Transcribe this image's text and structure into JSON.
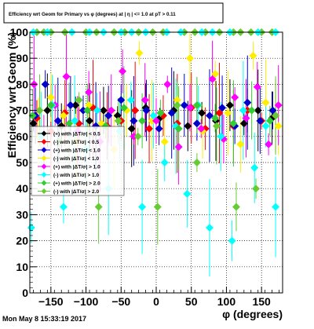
{
  "chart_data": {
    "type": "scatter",
    "title": "Efficiency wrt Geom for Primary vs φ (degrees) at | η | <= 1.0 at pT > 0.11",
    "xlabel": "φ (degrees)",
    "ylabel": "Efficiency wrt Geom (%)",
    "xlim": [
      -180,
      180
    ],
    "ylim": [
      0,
      100
    ],
    "xticks": [
      -150,
      -100,
      -50,
      0,
      50,
      100,
      150
    ],
    "yticks": [
      0,
      10,
      20,
      30,
      40,
      50,
      60,
      70,
      80,
      90,
      100
    ],
    "grid": true,
    "legend_position": "left-center",
    "series": [
      {
        "name": "(+) with |ΔT/σ| < 0.5",
        "color": "#000000",
        "x": [
          -175,
          -155,
          -135,
          -115,
          -95,
          -75,
          -55,
          -35,
          -15,
          5,
          25,
          45,
          65,
          85,
          105,
          125,
          145,
          165
        ],
        "y": [
          65,
          70,
          64,
          72,
          66,
          70,
          68,
          63,
          71,
          67,
          70,
          64,
          69,
          66,
          72,
          65,
          70,
          67
        ]
      },
      {
        "name": "(-) with |ΔT/σ| < 0.5",
        "color": "#ff0000",
        "x": [
          -170,
          -150,
          -130,
          -110,
          -90,
          -70,
          -50,
          -30,
          -10,
          10,
          30,
          50,
          70,
          90,
          110,
          130,
          150,
          170
        ],
        "y": [
          67,
          62,
          69,
          65,
          71,
          64,
          66,
          70,
          63,
          68,
          65,
          71,
          63,
          69,
          64,
          70,
          66,
          68
        ]
      },
      {
        "name": "(+) with |ΔT/σ| < 1.0",
        "color": "#0000cc",
        "x": [
          -172,
          -158,
          -140,
          -122,
          -104,
          -86,
          -68,
          -50,
          -32,
          -14,
          4,
          22,
          40,
          58,
          76,
          94,
          112,
          130,
          148,
          166
        ],
        "y": [
          68,
          80,
          66,
          72,
          70,
          64,
          68,
          74,
          66,
          70,
          63,
          69,
          72,
          65,
          68,
          71,
          64,
          73,
          66,
          70
        ]
      },
      {
        "name": "(-) with |ΔT/σ| < 1.0",
        "color": "#ffee00",
        "x": [
          -168,
          -150,
          -132,
          -114,
          -96,
          -78,
          -60,
          -42,
          -24,
          -6,
          12,
          30,
          48,
          66,
          84,
          102,
          120,
          138,
          156,
          174
        ],
        "y": [
          60,
          75,
          68,
          58,
          72,
          65,
          55,
          70,
          92,
          66,
          58,
          74,
          90,
          62,
          84,
          69,
          57,
          91,
          73,
          64
        ]
      },
      {
        "name": "(+) with |ΔT/σ| > 1.0",
        "color": "#ff00ff",
        "x": [
          -174,
          -160,
          -144,
          -128,
          -112,
          -96,
          -80,
          -64,
          -48,
          -32,
          -16,
          0,
          16,
          32,
          48,
          64,
          80,
          96,
          112,
          128,
          144,
          160,
          174
        ],
        "y": [
          80,
          55,
          72,
          83,
          62,
          77,
          58,
          70,
          85,
          60,
          74,
          66,
          80,
          56,
          71,
          63,
          82,
          59,
          75,
          67,
          79,
          57,
          72
        ]
      },
      {
        "name": "(-) with |ΔT/σ| > 1.0",
        "color": "#00ffff",
        "x": [
          -178,
          -164,
          -148,
          -132,
          -116,
          -100,
          -84,
          -68,
          -52,
          -36,
          -20,
          -4,
          12,
          28,
          44,
          60,
          76,
          92,
          108,
          124,
          140,
          156,
          170
        ],
        "y": [
          25,
          60,
          72,
          33,
          66,
          55,
          70,
          40,
          62,
          74,
          33,
          68,
          50,
          64,
          38,
          72,
          25,
          60,
          20,
          70,
          48,
          64,
          33
        ]
      },
      {
        "name": "(+) with |ΔT/σ| > 2.0",
        "color": "#33cc33",
        "x": [
          -176,
          -150,
          -124,
          -98,
          -72,
          -46,
          -20,
          6,
          32,
          58,
          84,
          110,
          136,
          162
        ],
        "y": [
          68,
          72,
          65,
          70,
          64,
          71,
          66,
          69,
          63,
          72,
          67,
          65,
          70,
          66
        ]
      },
      {
        "name": "(-) with |ΔT/σ| > 2.0",
        "color": "#66cc33",
        "x": [
          -166,
          -138,
          -110,
          -82,
          -54,
          -26,
          2,
          30,
          58,
          86,
          114,
          142,
          170
        ],
        "y": [
          70,
          58,
          74,
          33,
          66,
          60,
          33,
          72,
          50,
          64,
          33,
          40,
          68
        ]
      },
      {
        "name": "",
        "color": "#66cc33",
        "x": [
          -170,
          -160,
          -150,
          -130,
          -100,
          -85,
          -60,
          -45,
          -25,
          -5,
          10,
          40,
          55,
          70,
          90,
          110,
          120,
          135,
          150,
          165
        ],
        "y": [
          100,
          100,
          100,
          100,
          100,
          100,
          100,
          100,
          100,
          100,
          100,
          100,
          100,
          100,
          100,
          100,
          100,
          100,
          100,
          100
        ]
      },
      {
        "name": "",
        "color": "#00ffff",
        "x": [
          -175,
          -155,
          -120,
          -95,
          -75,
          -50,
          -35,
          -15,
          15,
          35,
          65,
          80,
          105,
          145,
          170
        ],
        "y": [
          100,
          100,
          100,
          100,
          100,
          100,
          100,
          100,
          100,
          100,
          100,
          100,
          100,
          100,
          100
        ]
      }
    ]
  },
  "footer": {
    "timestamp": "Mon May  8 15:33:19 2017"
  },
  "colors": {
    "frame": "#000000",
    "background": "#ffffff",
    "grid": "#000000"
  }
}
